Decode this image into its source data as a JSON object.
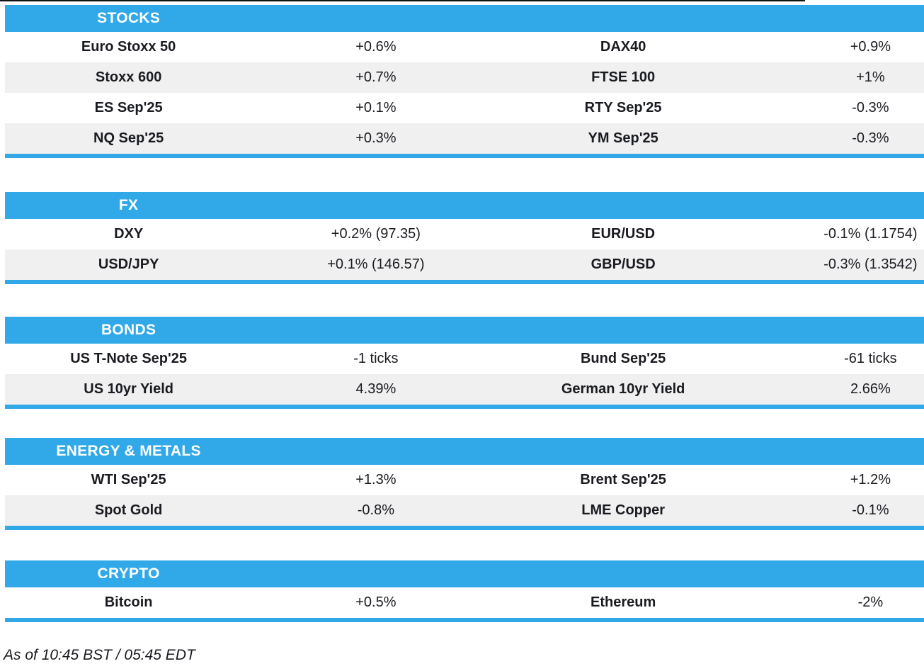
{
  "colors": {
    "accent_blue": "#31a9e8",
    "row_alt": "#f0f0f1",
    "text": "#1a1b20"
  },
  "sections": [
    {
      "title": "STOCKS",
      "rows": [
        {
          "cells": [
            {
              "label": "Euro Stoxx 50",
              "value": "+0.6%"
            },
            {
              "label": "DAX40",
              "value": "+0.9%"
            }
          ]
        },
        {
          "cells": [
            {
              "label": "Stoxx 600",
              "value": "+0.7%"
            },
            {
              "label": "FTSE 100",
              "value": "+1%"
            }
          ]
        },
        {
          "cells": [
            {
              "label": "ES Sep'25",
              "value": "+0.1%"
            },
            {
              "label": "RTY Sep'25",
              "value": "-0.3%"
            }
          ]
        },
        {
          "cells": [
            {
              "label": "NQ Sep'25",
              "value": "+0.3%"
            },
            {
              "label": "YM Sep'25",
              "value": "-0.3%"
            }
          ]
        }
      ]
    },
    {
      "title": "FX",
      "rows": [
        {
          "cells": [
            {
              "label": "DXY",
              "value": "+0.2% (97.35)"
            },
            {
              "label": "EUR/USD",
              "value": "-0.1% (1.1754)"
            }
          ]
        },
        {
          "cells": [
            {
              "label": "USD/JPY",
              "value": "+0.1% (146.57)"
            },
            {
              "label": "GBP/USD",
              "value": "-0.3% (1.3542)"
            }
          ]
        }
      ]
    },
    {
      "title": "BONDS",
      "rows": [
        {
          "cells": [
            {
              "label": "US T-Note Sep'25",
              "value": "-1 ticks"
            },
            {
              "label": "Bund Sep'25",
              "value": "-61 ticks"
            }
          ]
        },
        {
          "cells": [
            {
              "label": "US 10yr Yield",
              "value": "4.39%"
            },
            {
              "label": "German 10yr Yield",
              "value": "2.66%"
            }
          ]
        }
      ]
    },
    {
      "title": "ENERGY & METALS",
      "rows": [
        {
          "cells": [
            {
              "label": "WTI Sep'25",
              "value": "+1.3%"
            },
            {
              "label": "Brent Sep'25",
              "value": "+1.2%"
            }
          ]
        },
        {
          "cells": [
            {
              "label": "Spot Gold",
              "value": "-0.8%"
            },
            {
              "label": "LME Copper",
              "value": "-0.1%"
            }
          ]
        }
      ]
    },
    {
      "title": "CRYPTO",
      "rows": [
        {
          "cells": [
            {
              "label": "Bitcoin",
              "value": "+0.5%"
            },
            {
              "label": "Ethereum",
              "value": "-2%"
            }
          ]
        }
      ]
    }
  ],
  "footer": {
    "as_of": "As of 10:45 BST / 05:45 EDT"
  }
}
